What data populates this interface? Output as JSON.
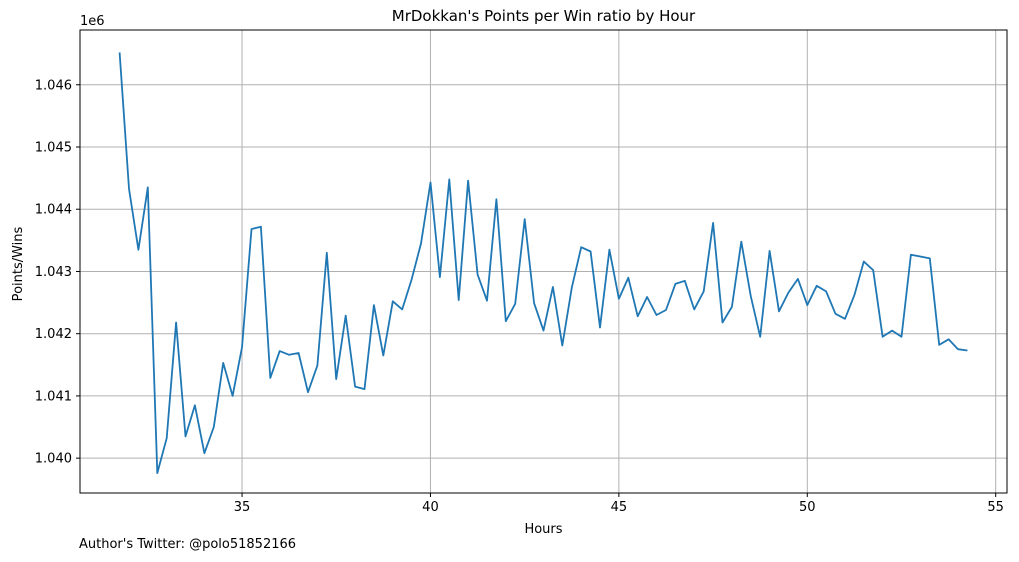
{
  "chart_data": {
    "type": "line",
    "title": "MrDokkan's Points per Win ratio by Hour",
    "xlabel": "Hours",
    "ylabel": "Points/Wins",
    "y_offset_label": "1e6",
    "xlim": [
      30.7,
      55.3
    ],
    "ylim": [
      1039440,
      1046880
    ],
    "x_ticks": [
      35,
      40,
      45,
      50,
      55
    ],
    "y_ticks": [
      1040000,
      1041000,
      1042000,
      1043000,
      1044000,
      1045000,
      1046000
    ],
    "y_tick_labels": [
      "1.040",
      "1.041",
      "1.042",
      "1.043",
      "1.044",
      "1.045",
      "1.046"
    ],
    "grid": true,
    "line_color": "#1f77b4",
    "series": [
      {
        "x": [
          31.75,
          32.0,
          32.25,
          32.5,
          32.75,
          33.0,
          33.25,
          33.5,
          33.75,
          34.0,
          34.25,
          34.5,
          34.75,
          35.0,
          35.25,
          35.5,
          35.75,
          36.0,
          36.25,
          36.5,
          36.75,
          37.0,
          37.25,
          37.5,
          37.75,
          38.0,
          38.25,
          38.5,
          38.75,
          39.0,
          39.25,
          39.5,
          39.75,
          40.0,
          40.25,
          40.5,
          40.75,
          41.0,
          41.25,
          41.5,
          41.75,
          42.0,
          42.25,
          42.5,
          42.75,
          43.0,
          43.25,
          43.5,
          43.75,
          44.0,
          44.25,
          44.5,
          44.75,
          45.0,
          45.25,
          45.5,
          45.75,
          46.0,
          46.25,
          46.5,
          46.75,
          47.0,
          47.25,
          47.5,
          47.75,
          48.0,
          48.25,
          48.5,
          48.75,
          49.0,
          49.25,
          49.5,
          49.75,
          50.0,
          50.25,
          50.5,
          50.75,
          51.0,
          51.25,
          51.5,
          51.75,
          52.0,
          52.25,
          52.5,
          52.75,
          53.0,
          53.25,
          53.5,
          53.75,
          54.0,
          54.25
        ],
        "y": [
          1046520,
          1044330,
          1043350,
          1044350,
          1039760,
          1040320,
          1042180,
          1040350,
          1040850,
          1040080,
          1040500,
          1041530,
          1041000,
          1041780,
          1043680,
          1043720,
          1041290,
          1041720,
          1041660,
          1041690,
          1041060,
          1041490,
          1043300,
          1041270,
          1042290,
          1041150,
          1041110,
          1042460,
          1041650,
          1042520,
          1042390,
          1042870,
          1043450,
          1044430,
          1042910,
          1044480,
          1042540,
          1044460,
          1042950,
          1042530,
          1044160,
          1042200,
          1042480,
          1043840,
          1042490,
          1042050,
          1042750,
          1041810,
          1042740,
          1043390,
          1043320,
          1042100,
          1043350,
          1042560,
          1042900,
          1042280,
          1042590,
          1042300,
          1042380,
          1042800,
          1042850,
          1042390,
          1042680,
          1043780,
          1042180,
          1042430,
          1043480,
          1042600,
          1041950,
          1043330,
          1042360,
          1042660,
          1042880,
          1042460,
          1042770,
          1042680,
          1042320,
          1042240,
          1042620,
          1043160,
          1043020,
          1041950,
          1042050,
          1041950,
          1043270,
          1043240,
          1043210,
          1041820,
          1041910,
          1041750,
          1041730
        ]
      }
    ]
  },
  "footer_text": "Author's Twitter: @polo51852166"
}
